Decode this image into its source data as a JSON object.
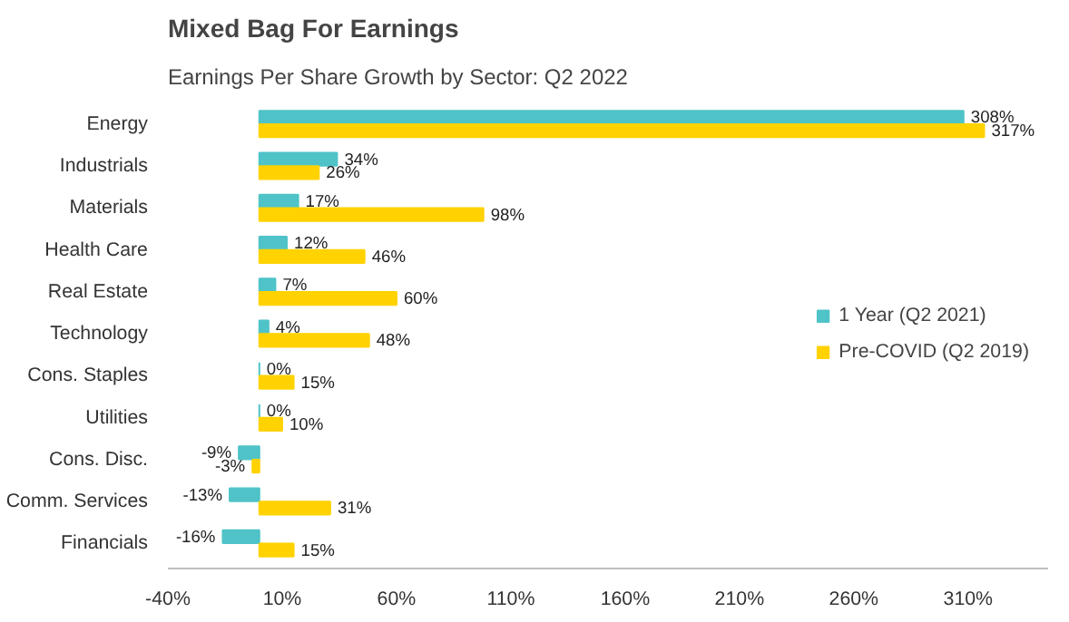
{
  "chart_data": {
    "type": "bar",
    "orientation": "horizontal",
    "title": "Mixed Bag For Earnings",
    "subtitle": "Earnings Per Share Growth by Sector: Q2 2022",
    "categories": [
      "Energy",
      "Industrials",
      "Materials",
      "Health Care",
      "Real Estate",
      "Technology",
      "Cons. Staples",
      "Utilities",
      "Cons. Disc.",
      "Comm. Services",
      "Financials"
    ],
    "series": [
      {
        "name": "1 Year (Q2 2021)",
        "color": "#4fc3c8",
        "values": [
          308,
          34,
          17,
          12,
          7,
          4,
          0,
          0,
          -9,
          -13,
          -16
        ],
        "value_labels": [
          "308%",
          "34%",
          "17%",
          "12%",
          "7%",
          "4%",
          "0%",
          "0%",
          "-9%",
          "-13%",
          "-16%"
        ]
      },
      {
        "name": "Pre-COVID (Q2 2019)",
        "color": "#ffd200",
        "values": [
          317,
          26,
          98,
          46,
          60,
          48,
          15,
          10,
          -3,
          31,
          15
        ],
        "value_labels": [
          "317%",
          "26%",
          "98%",
          "46%",
          "60%",
          "48%",
          "15%",
          "10%",
          "-3%",
          "31%",
          "15%"
        ]
      }
    ],
    "xlim": [
      -40,
      345
    ],
    "xticks": [
      {
        "value": -40,
        "label": "-40%"
      },
      {
        "value": 10,
        "label": "10%"
      },
      {
        "value": 60,
        "label": "60%"
      },
      {
        "value": 110,
        "label": "110%"
      },
      {
        "value": 160,
        "label": "160%"
      },
      {
        "value": 210,
        "label": "210%"
      },
      {
        "value": 260,
        "label": "260%"
      },
      {
        "value": 310,
        "label": "310%"
      }
    ],
    "grid": false,
    "legend": "right"
  }
}
